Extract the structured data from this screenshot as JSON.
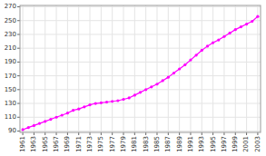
{
  "chart_data": {
    "type": "line",
    "x": [
      1961,
      1962,
      1963,
      1964,
      1965,
      1966,
      1967,
      1968,
      1969,
      1970,
      1971,
      1972,
      1973,
      1974,
      1975,
      1976,
      1977,
      1978,
      1979,
      1980,
      1981,
      1982,
      1983,
      1984,
      1985,
      1986,
      1987,
      1988,
      1989,
      1990,
      1991,
      1992,
      1993,
      1994,
      1995,
      1996,
      1997,
      1998,
      1999,
      2000,
      2001,
      2002,
      2003
    ],
    "values": [
      92,
      95,
      98,
      101,
      104,
      107,
      110,
      113,
      116,
      120,
      122,
      125,
      128,
      130,
      131,
      132,
      133,
      134,
      136,
      138,
      142,
      146,
      150,
      154,
      158,
      163,
      168,
      174,
      180,
      186,
      193,
      200,
      207,
      213,
      218,
      222,
      227,
      232,
      237,
      241,
      245,
      249,
      256
    ],
    "color": "#ff00ff",
    "marker": "circle",
    "xlim": [
      1960.5,
      2003.5
    ],
    "xticks": [
      1961,
      1963,
      1965,
      1967,
      1969,
      1971,
      1973,
      1975,
      1977,
      1979,
      1981,
      1983,
      1985,
      1987,
      1989,
      1991,
      1993,
      1995,
      1997,
      1999,
      2001,
      2003
    ],
    "ylim": [
      88,
      272
    ],
    "yticks": [
      90,
      110,
      130,
      150,
      170,
      190,
      210,
      230,
      250,
      270
    ],
    "grid": true
  }
}
